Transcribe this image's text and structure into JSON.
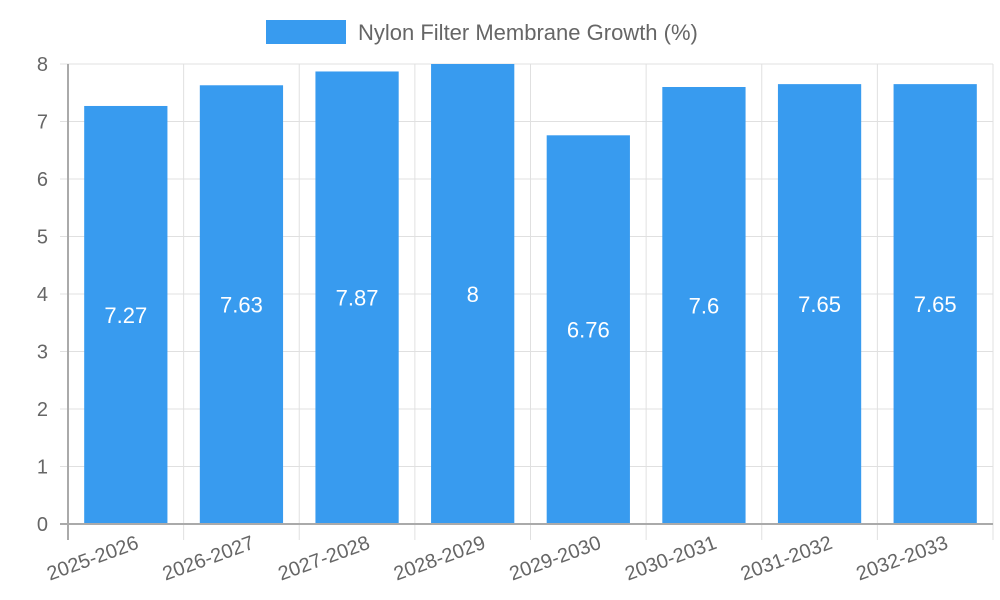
{
  "chart_data": {
    "type": "bar",
    "title": "",
    "legend": {
      "label": "Nylon Filter Membrane Growth (%)",
      "position": "top",
      "color": "#389bef"
    },
    "categories": [
      "2025-2026",
      "2026-2027",
      "2027-2028",
      "2028-2029",
      "2029-2030",
      "2030-2031",
      "2031-2032",
      "2032-2033"
    ],
    "series": [
      {
        "name": "Nylon Filter Membrane Growth (%)",
        "values": [
          7.27,
          7.63,
          7.87,
          8,
          6.76,
          7.6,
          7.65,
          7.65
        ]
      }
    ],
    "value_labels": [
      "7.27",
      "7.63",
      "7.87",
      "8",
      "6.76",
      "7.6",
      "7.65",
      "7.65"
    ],
    "xlabel": "",
    "ylabel": "",
    "ylim": [
      0,
      8
    ],
    "yticks": [
      "0",
      "1",
      "2",
      "3",
      "4",
      "5",
      "6",
      "7",
      "8"
    ],
    "grid": true,
    "colors": {
      "bar": "#389bef",
      "grid": "#e0e0e0",
      "axis": "#aaaaaa",
      "text": "#666666"
    }
  }
}
